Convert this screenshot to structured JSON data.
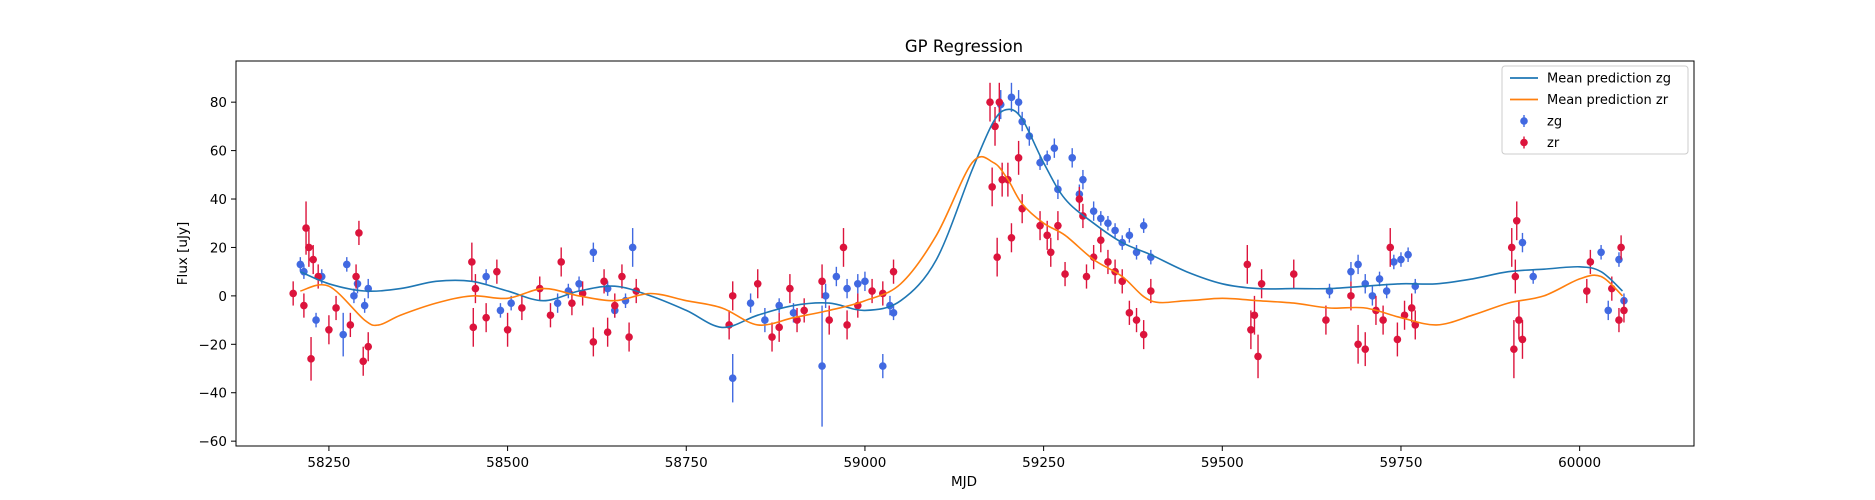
{
  "chart_data": {
    "type": "scatter",
    "title": "GP Regression",
    "xlabel": "MJD",
    "ylabel": "Flux [uJy]",
    "xlim": [
      58120,
      60160
    ],
    "ylim": [
      -62,
      97
    ],
    "x_ticks": [
      58250,
      58500,
      58750,
      59000,
      59250,
      59500,
      59750,
      60000
    ],
    "y_ticks": [
      -60,
      -40,
      -20,
      0,
      20,
      40,
      60,
      80
    ],
    "grid": false,
    "legend_position": "top-right",
    "legend": [
      {
        "label": "Mean prediction zg",
        "kind": "line",
        "color": "#1f77b4"
      },
      {
        "label": "Mean prediction zr",
        "kind": "line",
        "color": "#ff7f0e"
      },
      {
        "label": "zg",
        "kind": "errorbar",
        "color": "#4169e1"
      },
      {
        "label": "zr",
        "kind": "errorbar",
        "color": "#dc143c"
      }
    ],
    "series": [
      {
        "name": "Mean prediction zg",
        "kind": "line",
        "color": "#1f77b4",
        "x": [
          58210,
          58250,
          58300,
          58350,
          58400,
          58450,
          58500,
          58550,
          58600,
          58650,
          58700,
          58750,
          58800,
          58850,
          58900,
          58950,
          59000,
          59050,
          59100,
          59150,
          59180,
          59200,
          59220,
          59250,
          59280,
          59320,
          59360,
          59400,
          59450,
          59500,
          59550,
          59600,
          59650,
          59700,
          59750,
          59800,
          59850,
          59900,
          59950,
          60000,
          60030,
          60060
        ],
        "y": [
          10,
          5,
          2,
          3,
          6,
          6,
          2,
          -2,
          2,
          4,
          0,
          -6,
          -13,
          -8,
          -4,
          -3,
          -6,
          -2,
          15,
          52,
          72,
          77,
          73,
          55,
          40,
          30,
          22,
          17,
          10,
          5,
          3,
          3,
          3,
          4,
          5,
          5,
          7,
          10,
          11,
          12,
          10,
          2
        ]
      },
      {
        "name": "Mean prediction zr",
        "kind": "line",
        "color": "#ff7f0e",
        "x": [
          58210,
          58250,
          58300,
          58320,
          58350,
          58400,
          58450,
          58500,
          58550,
          58600,
          58650,
          58700,
          58750,
          58800,
          58850,
          58900,
          58950,
          59000,
          59050,
          59100,
          59150,
          59180,
          59200,
          59220,
          59250,
          59280,
          59320,
          59360,
          59400,
          59450,
          59500,
          59550,
          59600,
          59650,
          59700,
          59750,
          59800,
          59850,
          59900,
          59950,
          60000,
          60030,
          60060
        ],
        "y": [
          2,
          4,
          -10,
          -12,
          -8,
          -3,
          0,
          -1,
          3,
          0,
          -2,
          1,
          -2,
          -5,
          -12,
          -9,
          -6,
          -2,
          5,
          25,
          55,
          55,
          48,
          38,
          30,
          25,
          15,
          8,
          -2,
          -2,
          -1,
          -2,
          -3,
          -5,
          -5,
          -9,
          -12,
          -8,
          -3,
          0,
          7,
          8,
          0
        ]
      },
      {
        "name": "zg",
        "kind": "errorbar",
        "color": "#4169e1",
        "points": [
          {
            "x": 58210,
            "y": 13,
            "e": 3
          },
          {
            "x": 58215,
            "y": 10,
            "e": 3
          },
          {
            "x": 58232,
            "y": -10,
            "e": 3
          },
          {
            "x": 58240,
            "y": 8,
            "e": 3
          },
          {
            "x": 58270,
            "y": -16,
            "e": 9
          },
          {
            "x": 58275,
            "y": 13,
            "e": 3
          },
          {
            "x": 58285,
            "y": 0,
            "e": 3
          },
          {
            "x": 58290,
            "y": 5,
            "e": 4
          },
          {
            "x": 58300,
            "y": -4,
            "e": 3
          },
          {
            "x": 58305,
            "y": 3,
            "e": 4
          },
          {
            "x": 58470,
            "y": 8,
            "e": 3
          },
          {
            "x": 58490,
            "y": -6,
            "e": 3
          },
          {
            "x": 58505,
            "y": -3,
            "e": 3
          },
          {
            "x": 58570,
            "y": -3,
            "e": 4
          },
          {
            "x": 58585,
            "y": 2,
            "e": 3
          },
          {
            "x": 58600,
            "y": 5,
            "e": 3
          },
          {
            "x": 58620,
            "y": 18,
            "e": 4
          },
          {
            "x": 58640,
            "y": 3,
            "e": 3
          },
          {
            "x": 58650,
            "y": -6,
            "e": 3
          },
          {
            "x": 58665,
            "y": -2,
            "e": 3
          },
          {
            "x": 58675,
            "y": 20,
            "e": 8
          },
          {
            "x": 58815,
            "y": -34,
            "e": 10
          },
          {
            "x": 58840,
            "y": -3,
            "e": 4
          },
          {
            "x": 58860,
            "y": -10,
            "e": 5
          },
          {
            "x": 58880,
            "y": -4,
            "e": 3
          },
          {
            "x": 58900,
            "y": -7,
            "e": 4
          },
          {
            "x": 58940,
            "y": -29,
            "e": 25
          },
          {
            "x": 58945,
            "y": 0,
            "e": 5
          },
          {
            "x": 58960,
            "y": 8,
            "e": 4
          },
          {
            "x": 58975,
            "y": 3,
            "e": 4
          },
          {
            "x": 58990,
            "y": 5,
            "e": 4
          },
          {
            "x": 59000,
            "y": 6,
            "e": 4
          },
          {
            "x": 59025,
            "y": -29,
            "e": 5
          },
          {
            "x": 59035,
            "y": -4,
            "e": 4
          },
          {
            "x": 59040,
            "y": -7,
            "e": 3
          },
          {
            "x": 59190,
            "y": 79,
            "e": 6
          },
          {
            "x": 59205,
            "y": 82,
            "e": 6
          },
          {
            "x": 59215,
            "y": 80,
            "e": 5
          },
          {
            "x": 59220,
            "y": 72,
            "e": 4
          },
          {
            "x": 59230,
            "y": 66,
            "e": 4
          },
          {
            "x": 59245,
            "y": 55,
            "e": 3
          },
          {
            "x": 59255,
            "y": 57,
            "e": 3
          },
          {
            "x": 59265,
            "y": 61,
            "e": 4
          },
          {
            "x": 59270,
            "y": 44,
            "e": 4
          },
          {
            "x": 59290,
            "y": 57,
            "e": 4
          },
          {
            "x": 59300,
            "y": 42,
            "e": 4
          },
          {
            "x": 59305,
            "y": 48,
            "e": 4
          },
          {
            "x": 59320,
            "y": 35,
            "e": 4
          },
          {
            "x": 59330,
            "y": 32,
            "e": 3
          },
          {
            "x": 59340,
            "y": 30,
            "e": 3
          },
          {
            "x": 59350,
            "y": 27,
            "e": 3
          },
          {
            "x": 59360,
            "y": 22,
            "e": 3
          },
          {
            "x": 59370,
            "y": 25,
            "e": 3
          },
          {
            "x": 59380,
            "y": 18,
            "e": 3
          },
          {
            "x": 59390,
            "y": 29,
            "e": 3
          },
          {
            "x": 59400,
            "y": 16,
            "e": 3
          },
          {
            "x": 59650,
            "y": 2,
            "e": 3
          },
          {
            "x": 59680,
            "y": 10,
            "e": 4
          },
          {
            "x": 59690,
            "y": 13,
            "e": 4
          },
          {
            "x": 59700,
            "y": 5,
            "e": 4
          },
          {
            "x": 59710,
            "y": 0,
            "e": 4
          },
          {
            "x": 59720,
            "y": 7,
            "e": 3
          },
          {
            "x": 59730,
            "y": 2,
            "e": 3
          },
          {
            "x": 59740,
            "y": 14,
            "e": 3
          },
          {
            "x": 59750,
            "y": 15,
            "e": 3
          },
          {
            "x": 59760,
            "y": 17,
            "e": 3
          },
          {
            "x": 59770,
            "y": 4,
            "e": 3
          },
          {
            "x": 59920,
            "y": 22,
            "e": 4
          },
          {
            "x": 59935,
            "y": 8,
            "e": 3
          },
          {
            "x": 60030,
            "y": 18,
            "e": 3
          },
          {
            "x": 60040,
            "y": -6,
            "e": 4
          },
          {
            "x": 60055,
            "y": 15,
            "e": 3
          },
          {
            "x": 60062,
            "y": -2,
            "e": 3
          }
        ]
      },
      {
        "name": "zr",
        "kind": "errorbar",
        "color": "#dc143c",
        "points": [
          {
            "x": 58200,
            "y": 1,
            "e": 5
          },
          {
            "x": 58215,
            "y": -4,
            "e": 5
          },
          {
            "x": 58218,
            "y": 28,
            "e": 11
          },
          {
            "x": 58222,
            "y": 20,
            "e": 8
          },
          {
            "x": 58225,
            "y": -26,
            "e": 9
          },
          {
            "x": 58228,
            "y": 15,
            "e": 6
          },
          {
            "x": 58235,
            "y": 8,
            "e": 5
          },
          {
            "x": 58250,
            "y": -14,
            "e": 6
          },
          {
            "x": 58260,
            "y": -5,
            "e": 5
          },
          {
            "x": 58280,
            "y": -12,
            "e": 5
          },
          {
            "x": 58288,
            "y": 8,
            "e": 5
          },
          {
            "x": 58292,
            "y": 26,
            "e": 5
          },
          {
            "x": 58298,
            "y": -27,
            "e": 6
          },
          {
            "x": 58305,
            "y": -21,
            "e": 6
          },
          {
            "x": 58450,
            "y": 14,
            "e": 8
          },
          {
            "x": 58452,
            "y": -13,
            "e": 8
          },
          {
            "x": 58455,
            "y": 3,
            "e": 6
          },
          {
            "x": 58470,
            "y": -9,
            "e": 6
          },
          {
            "x": 58485,
            "y": 10,
            "e": 5
          },
          {
            "x": 58500,
            "y": -14,
            "e": 7
          },
          {
            "x": 58520,
            "y": -5,
            "e": 5
          },
          {
            "x": 58545,
            "y": 3,
            "e": 5
          },
          {
            "x": 58560,
            "y": -8,
            "e": 5
          },
          {
            "x": 58575,
            "y": 14,
            "e": 6
          },
          {
            "x": 58590,
            "y": -3,
            "e": 5
          },
          {
            "x": 58605,
            "y": 1,
            "e": 5
          },
          {
            "x": 58620,
            "y": -19,
            "e": 6
          },
          {
            "x": 58635,
            "y": 6,
            "e": 5
          },
          {
            "x": 58640,
            "y": -15,
            "e": 6
          },
          {
            "x": 58650,
            "y": -4,
            "e": 5
          },
          {
            "x": 58660,
            "y": 8,
            "e": 5
          },
          {
            "x": 58670,
            "y": -17,
            "e": 6
          },
          {
            "x": 58680,
            "y": 2,
            "e": 5
          },
          {
            "x": 58810,
            "y": -12,
            "e": 6
          },
          {
            "x": 58815,
            "y": 0,
            "e": 6
          },
          {
            "x": 58850,
            "y": 5,
            "e": 6
          },
          {
            "x": 58870,
            "y": -17,
            "e": 6
          },
          {
            "x": 58880,
            "y": -13,
            "e": 6
          },
          {
            "x": 58895,
            "y": 3,
            "e": 6
          },
          {
            "x": 58905,
            "y": -10,
            "e": 5
          },
          {
            "x": 58915,
            "y": -6,
            "e": 5
          },
          {
            "x": 58940,
            "y": 6,
            "e": 7
          },
          {
            "x": 58950,
            "y": -10,
            "e": 6
          },
          {
            "x": 58970,
            "y": 20,
            "e": 8
          },
          {
            "x": 58975,
            "y": -12,
            "e": 6
          },
          {
            "x": 58990,
            "y": -4,
            "e": 5
          },
          {
            "x": 59010,
            "y": 2,
            "e": 5
          },
          {
            "x": 59025,
            "y": 1,
            "e": 5
          },
          {
            "x": 59040,
            "y": 10,
            "e": 5
          },
          {
            "x": 59175,
            "y": 80,
            "e": 8
          },
          {
            "x": 59178,
            "y": 45,
            "e": 8
          },
          {
            "x": 59182,
            "y": 70,
            "e": 8
          },
          {
            "x": 59185,
            "y": 16,
            "e": 8
          },
          {
            "x": 59188,
            "y": 80,
            "e": 8
          },
          {
            "x": 59192,
            "y": 48,
            "e": 7
          },
          {
            "x": 59200,
            "y": 48,
            "e": 7
          },
          {
            "x": 59205,
            "y": 24,
            "e": 6
          },
          {
            "x": 59215,
            "y": 57,
            "e": 7
          },
          {
            "x": 59220,
            "y": 36,
            "e": 6
          },
          {
            "x": 59245,
            "y": 29,
            "e": 6
          },
          {
            "x": 59255,
            "y": 25,
            "e": 6
          },
          {
            "x": 59260,
            "y": 18,
            "e": 6
          },
          {
            "x": 59270,
            "y": 29,
            "e": 6
          },
          {
            "x": 59280,
            "y": 9,
            "e": 5
          },
          {
            "x": 59300,
            "y": 40,
            "e": 5
          },
          {
            "x": 59305,
            "y": 33,
            "e": 5
          },
          {
            "x": 59310,
            "y": 8,
            "e": 5
          },
          {
            "x": 59320,
            "y": 16,
            "e": 5
          },
          {
            "x": 59330,
            "y": 23,
            "e": 5
          },
          {
            "x": 59340,
            "y": 14,
            "e": 5
          },
          {
            "x": 59350,
            "y": 10,
            "e": 5
          },
          {
            "x": 59360,
            "y": 6,
            "e": 5
          },
          {
            "x": 59370,
            "y": -7,
            "e": 5
          },
          {
            "x": 59380,
            "y": -10,
            "e": 5
          },
          {
            "x": 59390,
            "y": -16,
            "e": 6
          },
          {
            "x": 59400,
            "y": 2,
            "e": 5
          },
          {
            "x": 59535,
            "y": 13,
            "e": 8
          },
          {
            "x": 59540,
            "y": -14,
            "e": 8
          },
          {
            "x": 59545,
            "y": -8,
            "e": 8
          },
          {
            "x": 59550,
            "y": -25,
            "e": 9
          },
          {
            "x": 59555,
            "y": 5,
            "e": 6
          },
          {
            "x": 59600,
            "y": 9,
            "e": 6
          },
          {
            "x": 59645,
            "y": -10,
            "e": 6
          },
          {
            "x": 59680,
            "y": 0,
            "e": 6
          },
          {
            "x": 59690,
            "y": -20,
            "e": 8
          },
          {
            "x": 59700,
            "y": -22,
            "e": 7
          },
          {
            "x": 59715,
            "y": -6,
            "e": 6
          },
          {
            "x": 59725,
            "y": -10,
            "e": 6
          },
          {
            "x": 59735,
            "y": 20,
            "e": 8
          },
          {
            "x": 59745,
            "y": -18,
            "e": 7
          },
          {
            "x": 59755,
            "y": -8,
            "e": 6
          },
          {
            "x": 59765,
            "y": -5,
            "e": 6
          },
          {
            "x": 59770,
            "y": -12,
            "e": 6
          },
          {
            "x": 59905,
            "y": 20,
            "e": 8
          },
          {
            "x": 59908,
            "y": -22,
            "e": 12
          },
          {
            "x": 59910,
            "y": 8,
            "e": 7
          },
          {
            "x": 59912,
            "y": 31,
            "e": 8
          },
          {
            "x": 59915,
            "y": -10,
            "e": 8
          },
          {
            "x": 59920,
            "y": -18,
            "e": 8
          },
          {
            "x": 60010,
            "y": 2,
            "e": 5
          },
          {
            "x": 60015,
            "y": 14,
            "e": 5
          },
          {
            "x": 60045,
            "y": 3,
            "e": 5
          },
          {
            "x": 60055,
            "y": -10,
            "e": 5
          },
          {
            "x": 60058,
            "y": 20,
            "e": 5
          },
          {
            "x": 60062,
            "y": -6,
            "e": 5
          }
        ]
      }
    ]
  }
}
